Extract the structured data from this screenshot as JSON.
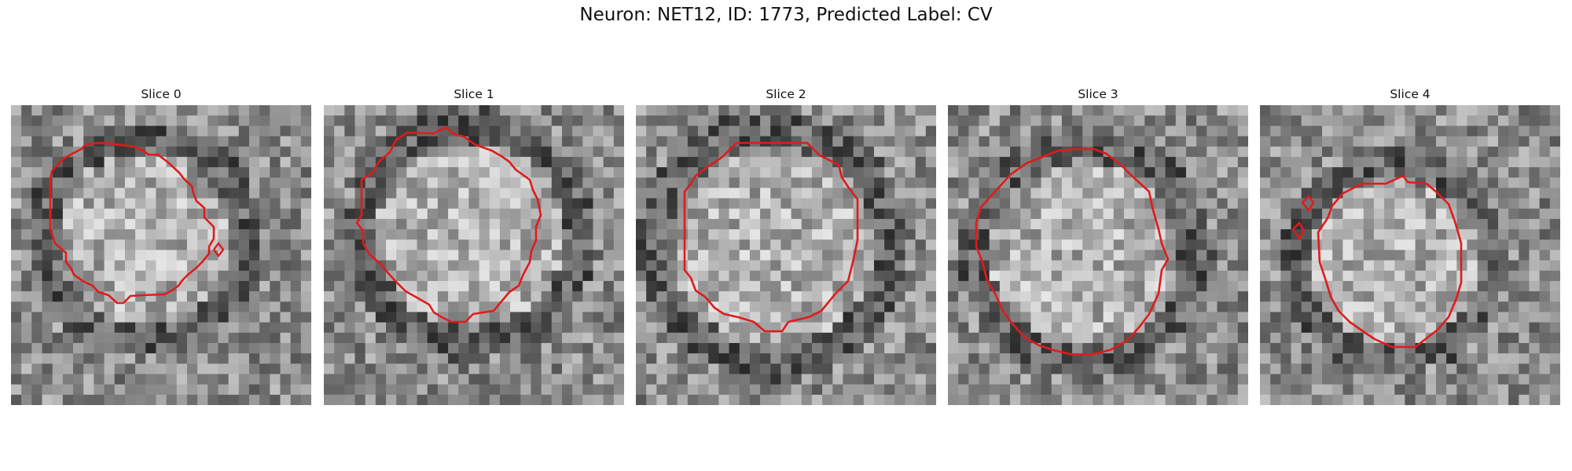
{
  "figure": {
    "title": "Neuron: NET12, ID: 1773, Predicted Label: CV"
  },
  "style": {
    "contour_color": "#e01b1b",
    "background_color": "#ffffff"
  },
  "panels": [
    {
      "title": "Slice 0"
    },
    {
      "title": "Slice 1"
    },
    {
      "title": "Slice 2"
    },
    {
      "title": "Slice 3"
    },
    {
      "title": "Slice 4"
    }
  ]
}
